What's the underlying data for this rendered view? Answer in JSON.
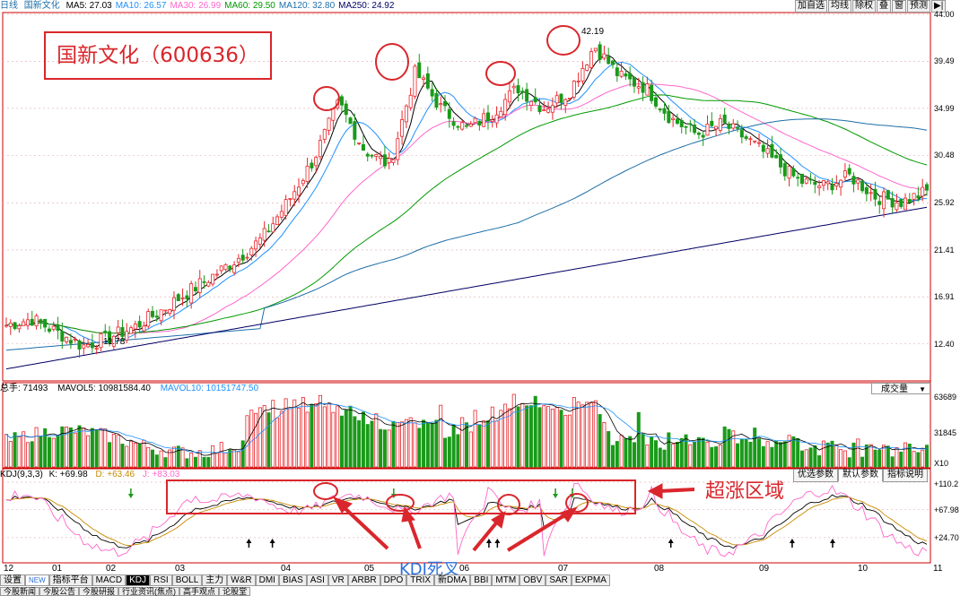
{
  "topbar": {
    "period": "日线",
    "name": "国新文化",
    "ma": [
      {
        "label": "MA5: 27.03",
        "color": "#000000"
      },
      {
        "label": "MA10: 26.57",
        "color": "#1e90ff"
      },
      {
        "label": "MA30: 26.99",
        "color": "#ff66cc"
      },
      {
        "label": "MA60: 29.50",
        "color": "#009900"
      },
      {
        "label": "MA120: 32.80",
        "color": "#1e6fa8"
      },
      {
        "label": "MA250: 24.92",
        "color": "#000066"
      }
    ],
    "buttons": [
      "加自选",
      "均线",
      "除权",
      "叠",
      "窗",
      "预测",
      "▶|"
    ]
  },
  "stock_title": "国新文化（600636）",
  "price_axis": [
    "44.00",
    "39.49",
    "34.99",
    "30.48",
    "25.92",
    "21.41",
    "16.91",
    "12.40"
  ],
  "price_annotations": {
    "high": "42.19",
    "low": "11.78"
  },
  "volume": {
    "label_total": "总手: 71493",
    "label_vol5": "MAVOL5: 10981584.40",
    "label_vol10": "MAVOL10: 10151747.50",
    "dropdown": "成交量",
    "axis": [
      "63689",
      "31845",
      "X10"
    ]
  },
  "kdj": {
    "label": "KDJ(9,3,3)",
    "k": "K: +69.98",
    "d": "D: +63.46",
    "j": "J: +83.03",
    "axis": [
      "+110.2",
      "+67.98",
      "+24.70"
    ],
    "tabs": [
      "优选参数",
      "默认参数",
      "指标说明"
    ],
    "active_tab": "默认参数"
  },
  "annotations": {
    "overbought": "超涨区域",
    "death_cross": "KDJ死叉"
  },
  "months": [
    "12",
    "01",
    "02",
    "03",
    "04",
    "05",
    "06",
    "07",
    "08",
    "09",
    "10",
    "11"
  ],
  "indicator_tabs": [
    "设置",
    "NEW",
    "指标平台",
    "MACD",
    "KDJ",
    "RSI",
    "BOLL",
    "主力",
    "W&R",
    "DMI",
    "BIAS",
    "ASI",
    "VR",
    "ARBR",
    "DPO",
    "TRIX",
    "新DMA",
    "BBI",
    "MTM",
    "OBV",
    "SAR",
    "EXPMA"
  ],
  "active_indicator": "KDJ",
  "bottom_tabs": [
    "今股新闻",
    "今股公告",
    "今股研报",
    "行业资讯(焦点)",
    "高手观点",
    "论股堂"
  ],
  "chart_data": {
    "type": "candlestick",
    "title": "国新文化（600636）",
    "ylim": [
      11.0,
      44.0
    ],
    "months": [
      "12",
      "01",
      "02",
      "03",
      "04",
      "05",
      "06",
      "07",
      "08",
      "09",
      "10",
      "11"
    ],
    "close_trend": [
      14.2,
      14.8,
      13.5,
      12.2,
      13.0,
      14.0,
      15.5,
      17.2,
      18.8,
      20.5,
      22.5,
      26.0,
      30.0,
      35.5,
      31.0,
      29.5,
      38.5,
      35.0,
      33.0,
      34.5,
      37.0,
      35.0,
      36.5,
      41.0,
      38.0,
      37.0,
      34.0,
      32.5,
      33.5,
      32.0,
      30.0,
      28.0,
      27.5,
      28.5,
      26.5,
      26.0,
      27.0
    ],
    "key_levels": {
      "high": 42.19,
      "low": 11.78
    }
  }
}
